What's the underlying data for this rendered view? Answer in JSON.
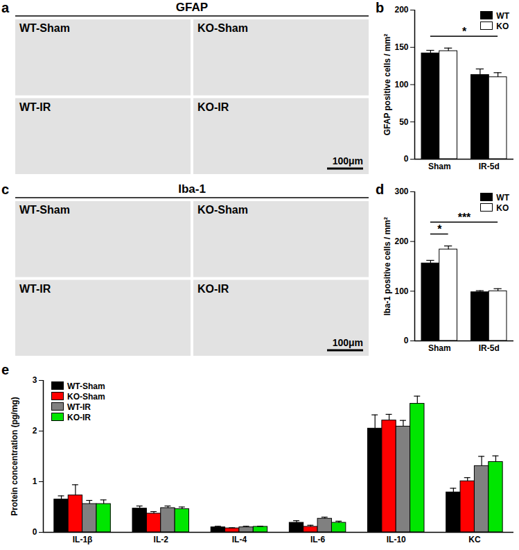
{
  "chart_data": [
    {
      "type": "image",
      "panel": "a",
      "title": "GFAP",
      "categories": [
        "WT-Sham",
        "KO-Sham",
        "WT-IR",
        "KO-IR"
      ],
      "annotations": [
        "100μm"
      ]
    },
    {
      "type": "bar",
      "panel": "b",
      "y_label": "GFAP positive cells / mm²",
      "categories": [
        "Sham",
        "IR-5d"
      ],
      "series": [
        {
          "name": "WT",
          "color": "#000000",
          "values": [
            142,
            113
          ],
          "errors": [
            4,
            8
          ]
        },
        {
          "name": "KO",
          "color": "#ffffff",
          "values": [
            145,
            110
          ],
          "errors": [
            4,
            6
          ]
        }
      ],
      "ylim": [
        0,
        200
      ],
      "yticks": [
        0,
        50,
        100,
        150,
        200
      ],
      "legend": "top-right",
      "annotations": [
        {
          "text": "*",
          "from": {
            "category": "Sham",
            "series": "WT"
          },
          "to": {
            "category": "IR-5d",
            "series": "KO"
          }
        }
      ]
    },
    {
      "type": "image",
      "panel": "c",
      "title": "Iba-1",
      "categories": [
        "WT-Sham",
        "KO-Sham",
        "WT-IR",
        "KO-IR"
      ],
      "annotations": [
        "100μm"
      ]
    },
    {
      "type": "bar",
      "panel": "d",
      "y_label": "Iba-1 positive cells / mm²",
      "categories": [
        "Sham",
        "IR-5d"
      ],
      "series": [
        {
          "name": "WT",
          "color": "#000000",
          "values": [
            156,
            98
          ],
          "errors": [
            6,
            3
          ]
        },
        {
          "name": "KO",
          "color": "#ffffff",
          "values": [
            184,
            100
          ],
          "errors": [
            7,
            5
          ]
        }
      ],
      "ylim": [
        0,
        300
      ],
      "yticks": [
        0,
        100,
        200,
        300
      ],
      "legend": "top-right",
      "annotations": [
        {
          "text": "*",
          "from": {
            "category": "Sham",
            "series": "WT"
          },
          "to": {
            "category": "Sham",
            "series": "KO"
          }
        },
        {
          "text": "***",
          "from": {
            "category": "Sham",
            "series": "WT"
          },
          "to": {
            "category": "IR-5d",
            "series": "KO"
          }
        }
      ]
    },
    {
      "type": "bar",
      "panel": "e",
      "y_label": "Protein concentration (pg/mg)",
      "categories": [
        "IL-1β",
        "IL-2",
        "IL-4",
        "IL-6",
        "IL-10",
        "KC"
      ],
      "series": [
        {
          "name": "WT-Sham",
          "color": "#000000",
          "values": [
            0.65,
            0.47,
            0.1,
            0.19,
            2.05,
            0.79
          ],
          "errors": [
            0.07,
            0.05,
            0.02,
            0.04,
            0.27,
            0.08
          ]
        },
        {
          "name": "KO-Sham",
          "color": "#ff0000",
          "values": [
            0.73,
            0.37,
            0.08,
            0.11,
            2.21,
            1.01
          ],
          "errors": [
            0.21,
            0.04,
            0.01,
            0.03,
            0.12,
            0.07
          ]
        },
        {
          "name": "WT-IR",
          "color": "#808080",
          "values": [
            0.56,
            0.48,
            0.1,
            0.27,
            2.09,
            1.31
          ],
          "errors": [
            0.07,
            0.04,
            0.02,
            0.03,
            0.12,
            0.19
          ]
        },
        {
          "name": "KO-IR",
          "color": "#00e600",
          "values": [
            0.56,
            0.46,
            0.11,
            0.19,
            2.54,
            1.39
          ],
          "errors": [
            0.08,
            0.04,
            0.01,
            0.03,
            0.15,
            0.12
          ]
        }
      ],
      "ylim": [
        0,
        3
      ],
      "yticks": [
        0,
        1,
        2,
        3
      ],
      "legend": "top-left"
    }
  ]
}
